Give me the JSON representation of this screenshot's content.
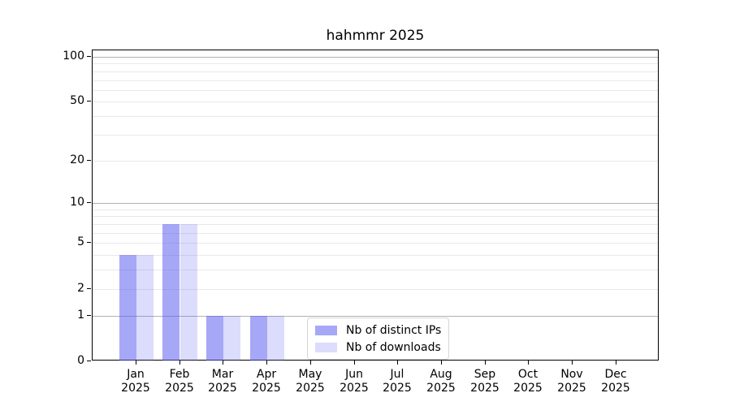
{
  "chart_data": {
    "type": "bar",
    "title": "hahmmr 2025",
    "categories": [
      "Jan 2025",
      "Feb 2025",
      "Mar 2025",
      "Apr 2025",
      "May 2025",
      "Jun 2025",
      "Jul 2025",
      "Aug 2025",
      "Sep 2025",
      "Oct 2025",
      "Nov 2025",
      "Dec 2025"
    ],
    "series": [
      {
        "name": "Nb of distinct IPs",
        "color": "rgba(80,80,240,0.5)",
        "values": [
          4,
          7,
          1,
          1,
          0,
          0,
          0,
          0,
          0,
          0,
          0,
          0
        ]
      },
      {
        "name": "Nb of downloads",
        "color": "rgba(80,80,240,0.2)",
        "values": [
          4,
          7,
          1,
          1,
          0,
          0,
          0,
          0,
          0,
          0,
          0,
          0
        ]
      }
    ],
    "yscale": "log1p",
    "ylim": [
      0,
      110
    ],
    "yticks": [
      0,
      1,
      2,
      5,
      10,
      20,
      50,
      100
    ],
    "gridlines": {
      "major": [
        1,
        10,
        100
      ],
      "minor": [
        2,
        3,
        4,
        5,
        6,
        7,
        8,
        9,
        20,
        30,
        40,
        50,
        60,
        70,
        80,
        90
      ]
    },
    "grid": true,
    "legend_position": "lower-center-inside"
  },
  "colors": {
    "distinct_ips_bar": "rgba(80,80,240,0.5)",
    "downloads_bar": "rgba(80,80,240,0.2)",
    "major_grid": "#b2b2b2",
    "minor_grid": "#e9e9e9",
    "axis": "#000000",
    "background": "#ffffff",
    "legend_border": "#d5d5d5"
  }
}
